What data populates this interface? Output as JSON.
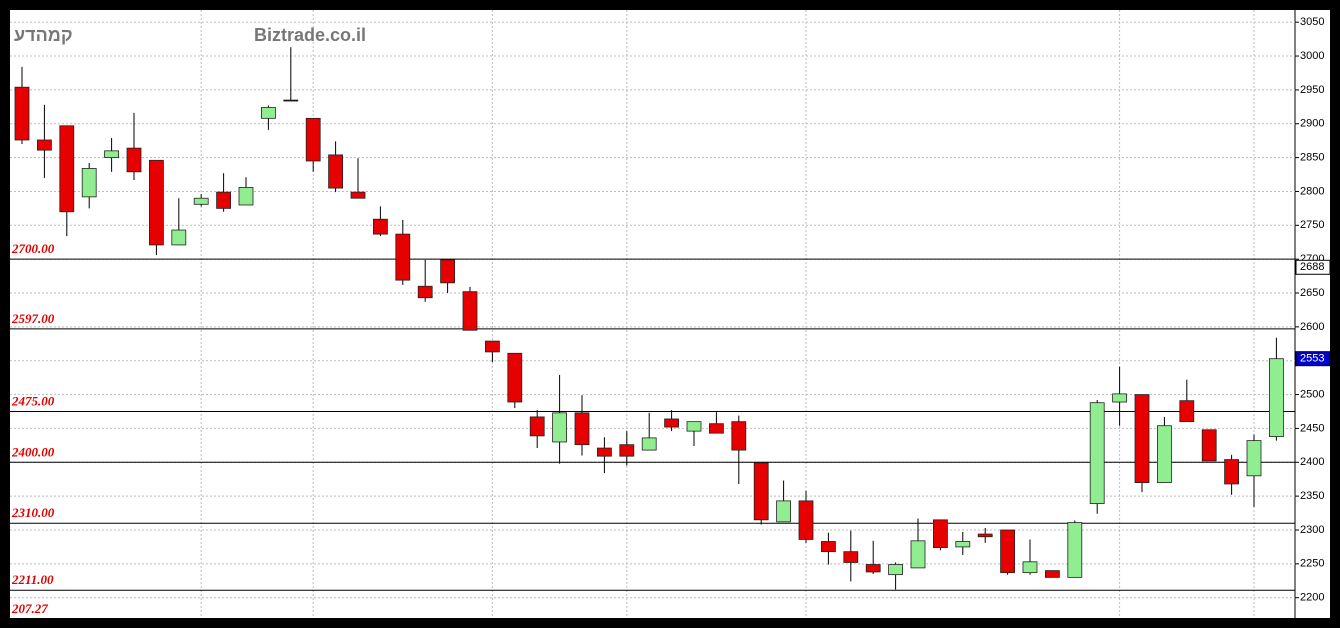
{
  "chart_data": {
    "type": "candlestick",
    "title": "קמהדע",
    "watermark": "Biztrade.co.il",
    "categories": [
      null,
      null,
      null,
      null,
      null,
      null,
      null,
      null,
      null,
      null,
      null,
      null,
      null,
      null,
      null,
      null,
      null,
      null,
      null,
      null,
      null,
      null,
      null,
      null,
      null,
      null,
      null,
      null,
      null,
      null,
      null,
      null,
      null,
      null,
      null,
      null,
      null,
      null,
      null,
      null,
      null,
      null,
      null,
      null,
      null,
      null,
      null,
      null,
      null,
      null,
      null,
      null,
      null,
      null,
      null,
      null,
      null
    ],
    "open": [
      2954,
      2876,
      2897,
      2792,
      2850,
      2864,
      2846,
      2721,
      2781,
      2799,
      2780,
      2908,
      2935,
      2908,
      2854,
      2799,
      2759,
      2737,
      2660,
      2699,
      2652,
      2579,
      2561,
      2467,
      2430,
      2473,
      2421,
      2426,
      2418,
      2464,
      2446,
      2457,
      2460,
      2399,
      2312,
      2343,
      2283,
      2268,
      2249,
      2234,
      2244,
      2315,
      2275,
      2294,
      2300,
      2237,
      2240,
      2230,
      2339,
      2489,
      2500,
      2370,
      2491,
      2448,
      2404,
      2380,
      2438
    ],
    "high": [
      2984,
      2928,
      2897,
      2842,
      2879,
      2916,
      2846,
      2790,
      2796,
      2827,
      2821,
      2927,
      3013,
      2908,
      2874,
      2849,
      2778,
      2758,
      2699,
      2699,
      2659,
      2579,
      2561,
      2477,
      2529,
      2499,
      2437,
      2446,
      2473,
      2477,
      2460,
      2474,
      2469,
      2399,
      2373,
      2358,
      2296,
      2299,
      2284,
      2252,
      2317,
      2315,
      2297,
      2303,
      2300,
      2286,
      2240,
      2314,
      2492,
      2541,
      2500,
      2467,
      2522,
      2448,
      2411,
      2441,
      2584
    ],
    "low": [
      2870,
      2820,
      2734,
      2775,
      2829,
      2817,
      2706,
      2721,
      2778,
      2770,
      2780,
      2891,
      2935,
      2829,
      2799,
      2790,
      2734,
      2662,
      2637,
      2650,
      2595,
      2548,
      2480,
      2421,
      2398,
      2410,
      2384,
      2395,
      2418,
      2446,
      2424,
      2443,
      2368,
      2308,
      2312,
      2281,
      2249,
      2224,
      2235,
      2212,
      2244,
      2270,
      2263,
      2281,
      2234,
      2234,
      2230,
      2230,
      2324,
      2454,
      2356,
      2370,
      2460,
      2402,
      2352,
      2334,
      2432
    ],
    "close": [
      2876,
      2861,
      2770,
      2834,
      2860,
      2829,
      2721,
      2743,
      2790,
      2775,
      2806,
      2924,
      2935,
      2845,
      2805,
      2790,
      2737,
      2669,
      2643,
      2665,
      2595,
      2563,
      2489,
      2439,
      2473,
      2426,
      2409,
      2409,
      2436,
      2452,
      2460,
      2443,
      2418,
      2315,
      2343,
      2286,
      2268,
      2252,
      2238,
      2249,
      2284,
      2274,
      2283,
      2290,
      2237,
      2253,
      2230,
      2311,
      2488,
      2501,
      2370,
      2454,
      2460,
      2402,
      2368,
      2432,
      2553
    ],
    "up_color": "#90ee90",
    "down_color": "#e60000",
    "ylim": [
      2170,
      3068
    ],
    "yticks": [
      2200,
      2250,
      2300,
      2350,
      2400,
      2450,
      2500,
      2550,
      2600,
      2650,
      2700,
      2750,
      2800,
      2850,
      2900,
      2950,
      3000,
      3050
    ],
    "grid": true,
    "levels": [
      {
        "value": 2700,
        "label": "2700.00"
      },
      {
        "value": 2597,
        "label": "2597.00"
      },
      {
        "value": 2475,
        "label": "2475.00"
      },
      {
        "value": 2400,
        "label": "2400.00"
      },
      {
        "value": 2310,
        "label": "2310.00"
      },
      {
        "value": 2211,
        "label": "2211.00"
      }
    ],
    "bottom_label": "207.27",
    "markers": [
      {
        "value": 2688,
        "color": "#ffffff",
        "text_color": "#000000"
      },
      {
        "value": 2553,
        "color": "#0000cc",
        "text_color": "#ffffff"
      }
    ]
  }
}
